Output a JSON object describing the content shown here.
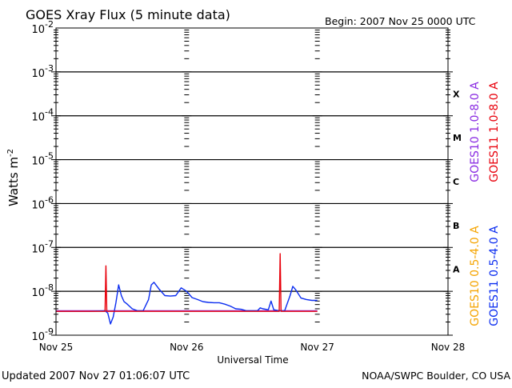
{
  "header": {
    "title": "GOES Xray Flux (5 minute data)",
    "begin": "Begin:  2007 Nov 25 0000 UTC"
  },
  "footer": {
    "updated": "Updated 2007 Nov 27 01:06:07 UTC",
    "source": "NOAA/SWPC Boulder, CO USA"
  },
  "colors": {
    "goes10_long": "#8a2be2",
    "goes11_long": "#e8000b",
    "goes10_short": "#f5a400",
    "goes11_short": "#0a2cf0",
    "grid": "#000000"
  },
  "chart_data": {
    "type": "line",
    "title": "GOES Xray Flux (5 minute data)",
    "xlabel": "Universal Time",
    "ylabel": "Watts m-2",
    "yscale": "log",
    "ylim": [
      1e-09,
      0.01
    ],
    "xlim": [
      "2007-11-25 00:00",
      "2007-11-28 00:00"
    ],
    "x_ticks": [
      "Nov 25",
      "Nov 26",
      "Nov 27",
      "Nov 28"
    ],
    "y_ticks": [
      {
        "base": "10",
        "exp": "-2"
      },
      {
        "base": "10",
        "exp": "-3"
      },
      {
        "base": "10",
        "exp": "-4"
      },
      {
        "base": "10",
        "exp": "-5"
      },
      {
        "base": "10",
        "exp": "-6"
      },
      {
        "base": "10",
        "exp": "-7"
      },
      {
        "base": "10",
        "exp": "-8"
      },
      {
        "base": "10",
        "exp": "-9"
      }
    ],
    "flare_classes": [
      {
        "label": "X",
        "value": 0.0001
      },
      {
        "label": "M",
        "value": 1e-05
      },
      {
        "label": "C",
        "value": 1e-06
      },
      {
        "label": "B",
        "value": 1e-07
      },
      {
        "label": "A",
        "value": 1e-08
      }
    ],
    "legend": [
      "GOES10 1.0-8.0 A",
      "GOES11 1.0-8.0 A",
      "GOES10 0.5-4.0 A",
      "GOES11 0.5-4.0 A"
    ],
    "legend_position": "right, vertical",
    "grid": "horizontal at each decade; dashed tick columns at each day",
    "series": [
      {
        "name": "GOES11 0.5-4.0 A",
        "color": "#0a2cf0",
        "points": [
          [
            "2007-11-25 00:00",
            3.5e-09
          ],
          [
            "2007-11-25 06:00",
            3.5e-09
          ],
          [
            "2007-11-25 09:00",
            3.6e-09
          ],
          [
            "2007-11-25 09:30",
            3.2e-09
          ],
          [
            "2007-11-25 10:00",
            1.8e-09
          ],
          [
            "2007-11-25 10:30",
            2.6e-09
          ],
          [
            "2007-11-25 11:00",
            5.5e-09
          ],
          [
            "2007-11-25 11:30",
            1.4e-08
          ],
          [
            "2007-11-25 12:00",
            8e-09
          ],
          [
            "2007-11-25 12:30",
            5.8e-09
          ],
          [
            "2007-11-25 13:00",
            5.2e-09
          ],
          [
            "2007-11-25 14:00",
            4e-09
          ],
          [
            "2007-11-25 15:00",
            3.6e-09
          ],
          [
            "2007-11-25 16:00",
            3.6e-09
          ],
          [
            "2007-11-25 17:00",
            6.5e-09
          ],
          [
            "2007-11-25 17:30",
            1.4e-08
          ],
          [
            "2007-11-25 18:00",
            1.6e-08
          ],
          [
            "2007-11-25 19:00",
            1.1e-08
          ],
          [
            "2007-11-25 20:00",
            8e-09
          ],
          [
            "2007-11-25 21:00",
            7.8e-09
          ],
          [
            "2007-11-25 22:00",
            8e-09
          ],
          [
            "2007-11-25 23:00",
            1.2e-08
          ],
          [
            "2007-11-26 00:00",
            1e-08
          ],
          [
            "2007-11-26 01:00",
            7.2e-09
          ],
          [
            "2007-11-26 02:00",
            6.5e-09
          ],
          [
            "2007-11-26 03:00",
            5.8e-09
          ],
          [
            "2007-11-26 04:00",
            5.6e-09
          ],
          [
            "2007-11-26 05:00",
            5.5e-09
          ],
          [
            "2007-11-26 06:00",
            5.5e-09
          ],
          [
            "2007-11-26 07:00",
            5.1e-09
          ],
          [
            "2007-11-26 08:00",
            4.6e-09
          ],
          [
            "2007-11-26 09:00",
            4e-09
          ],
          [
            "2007-11-26 10:00",
            3.9e-09
          ],
          [
            "2007-11-26 11:00",
            3.6e-09
          ],
          [
            "2007-11-26 12:00",
            3.6e-09
          ],
          [
            "2007-11-26 13:00",
            3.6e-09
          ],
          [
            "2007-11-26 13:30",
            4.2e-09
          ],
          [
            "2007-11-26 14:00",
            4e-09
          ],
          [
            "2007-11-26 15:00",
            3.8e-09
          ],
          [
            "2007-11-26 15:30",
            6e-09
          ],
          [
            "2007-11-26 16:00",
            3.8e-09
          ],
          [
            "2007-11-26 17:00",
            3.6e-09
          ],
          [
            "2007-11-26 18:00",
            3.6e-09
          ],
          [
            "2007-11-26 19:00",
            8e-09
          ],
          [
            "2007-11-26 19:30",
            1.3e-08
          ],
          [
            "2007-11-26 20:00",
            1.1e-08
          ],
          [
            "2007-11-26 21:00",
            7e-09
          ],
          [
            "2007-11-26 22:00",
            6.5e-09
          ],
          [
            "2007-11-26 23:00",
            6.2e-09
          ],
          [
            "2007-11-27 00:00",
            6.2e-09
          ]
        ]
      },
      {
        "name": "GOES11 1.0-8.0 A",
        "color": "#e8000b",
        "points": [
          [
            "2007-11-25 00:00",
            3.5e-09
          ],
          [
            "2007-11-25 09:00",
            3.5e-09
          ],
          [
            "2007-11-25 09:10",
            3.8e-08
          ],
          [
            "2007-11-25 09:20",
            3.5e-09
          ],
          [
            "2007-11-26 17:00",
            3.5e-09
          ],
          [
            "2007-11-26 17:10",
            7.2e-08
          ],
          [
            "2007-11-26 17:20",
            3.5e-09
          ],
          [
            "2007-11-27 00:00",
            3.5e-09
          ]
        ]
      },
      {
        "name": "GOES10 1.0-8.0 A",
        "color": "#8a2be2",
        "points": [
          [
            "2007-11-25 00:00",
            3.6e-09
          ],
          [
            "2007-11-25 12:00",
            3.6e-09
          ],
          [
            "2007-11-26 00:00",
            3.6e-09
          ],
          [
            "2007-11-27 00:00",
            3.6e-09
          ]
        ]
      }
    ]
  }
}
